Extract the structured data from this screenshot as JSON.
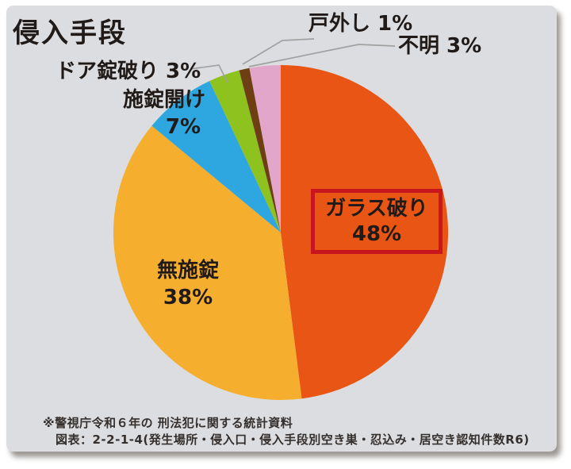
{
  "title": "侵入手段",
  "chart_data": {
    "type": "pie",
    "title": "侵入手段",
    "unit": "%",
    "direction": "clockwise",
    "start_angle_deg": 0,
    "categories": [
      "ガラス破り",
      "無施錠",
      "施錠開け",
      "ドア錠破り",
      "戸外し",
      "不明"
    ],
    "values": [
      48,
      38,
      7,
      3,
      1,
      3
    ],
    "slices": [
      {
        "key": "glass",
        "label": "ガラス破り",
        "value": 48,
        "color": "#e85514",
        "highlighted": true
      },
      {
        "key": "unlocked",
        "label": "無施錠",
        "value": 38,
        "color": "#f5ae2d",
        "highlighted": false
      },
      {
        "key": "picking",
        "label": "施錠開け",
        "value": 7,
        "color": "#2ea7e0",
        "highlighted": false
      },
      {
        "key": "door",
        "label": "ドア錠破り",
        "value": 3,
        "color": "#8dc21f",
        "highlighted": false
      },
      {
        "key": "removal",
        "label": "戸外し",
        "value": 1,
        "color": "#6f3f14",
        "highlighted": false
      },
      {
        "key": "unknown",
        "label": "不明",
        "value": 3,
        "color": "#e2a6ca",
        "highlighted": false
      }
    ],
    "legend_position": "none",
    "labels_on_chart": true
  },
  "labels": {
    "glass": {
      "name": "ガラス破り",
      "pct": "48%"
    },
    "unlocked": {
      "name": "無施錠",
      "pct": "38%"
    },
    "picking": {
      "name": "施錠開け",
      "pct": "7%"
    },
    "door": {
      "text": "ドア錠破り 3%"
    },
    "removal": {
      "text": "戸外し 1%"
    },
    "unknown": {
      "text": "不明 3%"
    }
  },
  "footnote": {
    "line1": "※警視庁令和６年の 刑法犯に関する統計資料",
    "line2": "図表：2-2-1-4(発生場所・侵入口・侵入手段別空き巣・忍込み・居空き認知件数R6)"
  },
  "colors": {
    "card_background": "#dcdde0",
    "page_background": "#ffffff",
    "text": "#201b18",
    "footnote_text": "#35302d",
    "leader_line": "#a1a1a1",
    "highlight_border": "#c8161e"
  }
}
